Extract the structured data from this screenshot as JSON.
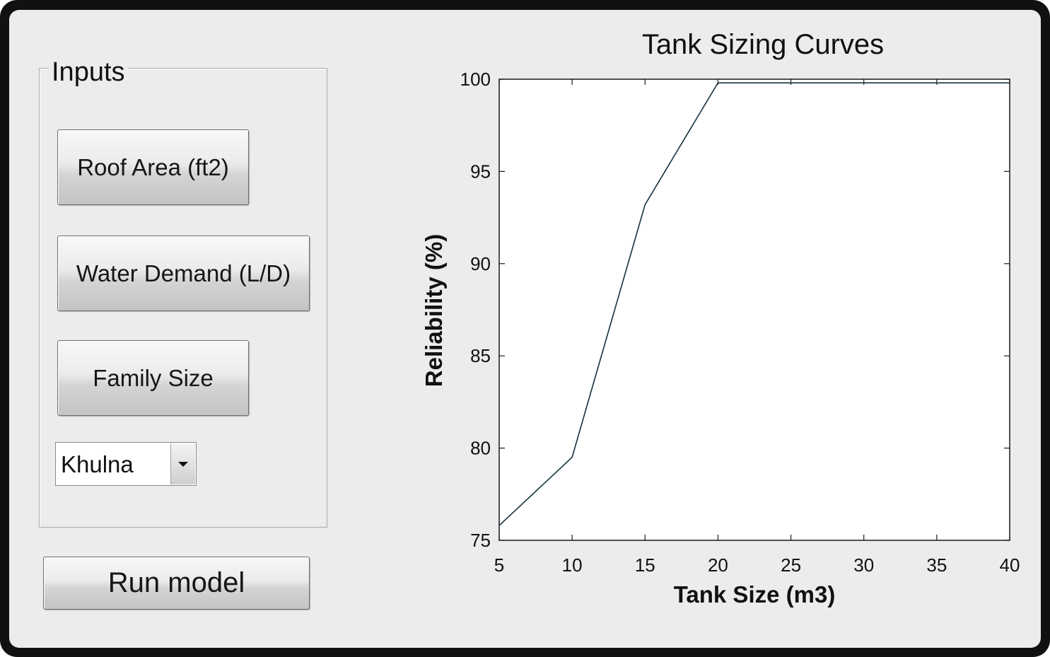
{
  "inputs_panel": {
    "title": "Inputs",
    "roof_area_button": "Roof Area (ft2)",
    "water_demand_button": "Water Demand (L/D)",
    "family_size_button": "Family Size",
    "location_select": {
      "selected": "Khulna"
    }
  },
  "run_button": "Run model",
  "chart_data": {
    "type": "line",
    "title": "Tank Sizing Curves",
    "xlabel": "Tank Size (m3)",
    "ylabel": "Reliability (%)",
    "xlim": [
      5,
      40
    ],
    "ylim": [
      75,
      100
    ],
    "xticks": [
      "5",
      "10",
      "15",
      "20",
      "25",
      "30",
      "35",
      "40"
    ],
    "yticks": [
      "75",
      "80",
      "85",
      "90",
      "95",
      "100"
    ],
    "grid": false,
    "series": [
      {
        "color": "#16323f",
        "x": [
          5,
          10,
          15,
          20,
          25,
          30,
          35,
          40
        ],
        "y": [
          75.8,
          79.5,
          93.2,
          99.8,
          99.8,
          99.8,
          99.8,
          99.8
        ]
      }
    ]
  }
}
